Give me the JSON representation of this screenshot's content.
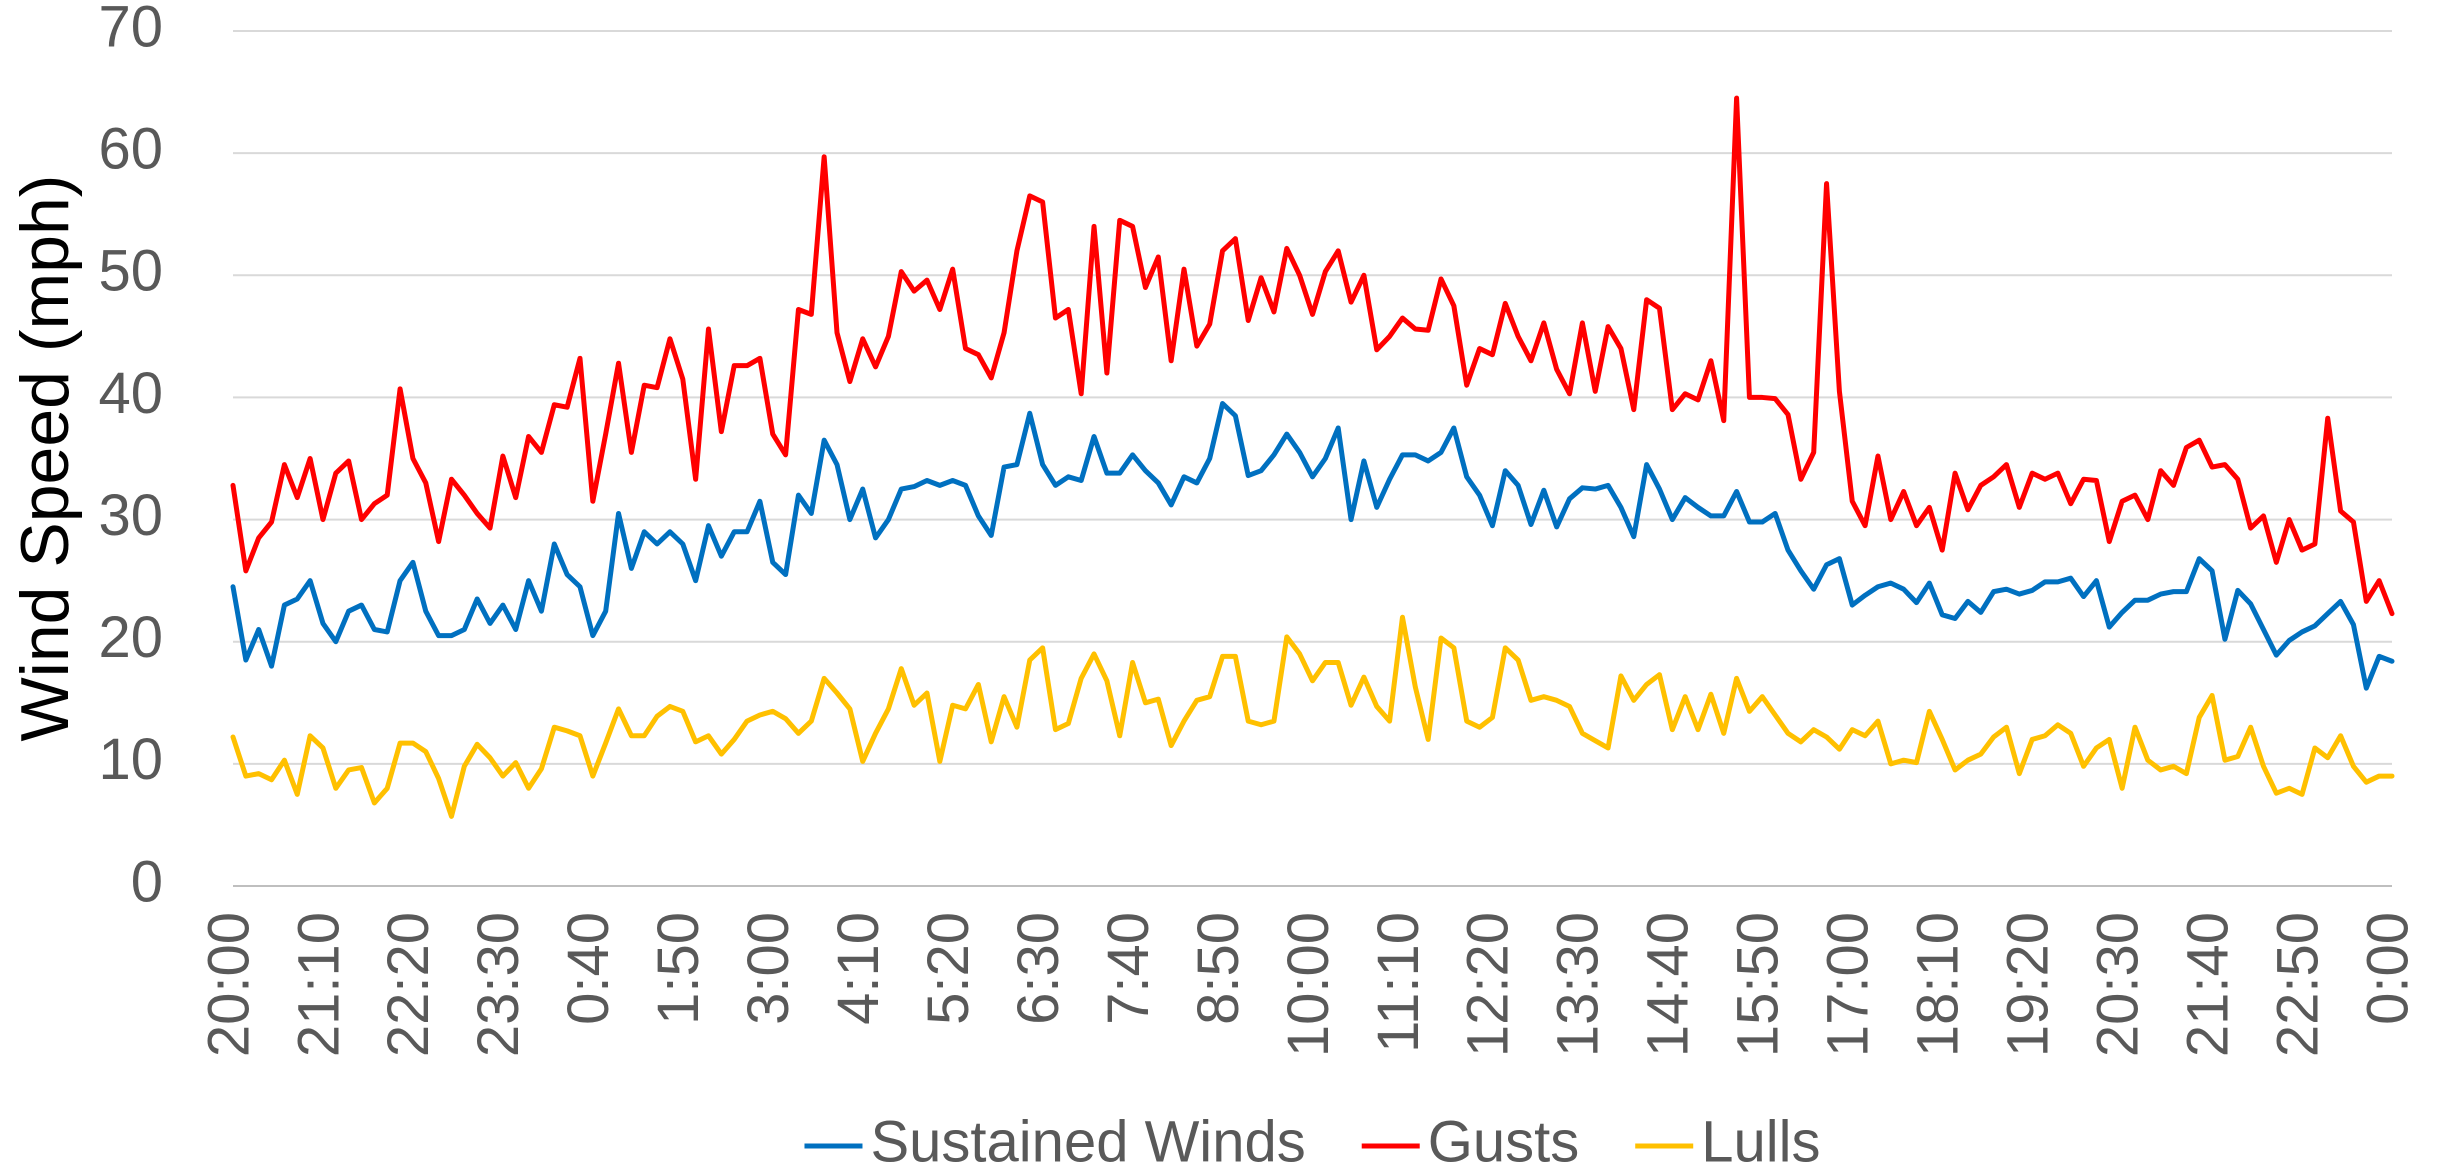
{
  "chart_data": {
    "type": "line",
    "ylabel": "Wind Speed (mph)",
    "ylim": [
      0,
      70
    ],
    "yticks": [
      0,
      10,
      20,
      30,
      40,
      50,
      60,
      70
    ],
    "grid": true,
    "legend": "bottom",
    "categories": [
      "20:00",
      null,
      null,
      null,
      null,
      null,
      null,
      "21:10",
      null,
      null,
      null,
      null,
      null,
      null,
      "22:20",
      null,
      null,
      null,
      null,
      null,
      null,
      "23:30",
      null,
      null,
      null,
      null,
      null,
      null,
      "0:40",
      null,
      null,
      null,
      null,
      null,
      null,
      "1:50",
      null,
      null,
      null,
      null,
      null,
      null,
      "3:00",
      null,
      null,
      null,
      null,
      null,
      null,
      "4:10",
      null,
      null,
      null,
      null,
      null,
      null,
      "5:20",
      null,
      null,
      null,
      null,
      null,
      null,
      "6:30",
      null,
      null,
      null,
      null,
      null,
      null,
      "7:40",
      null,
      null,
      null,
      null,
      null,
      null,
      "8:50",
      null,
      null,
      null,
      null,
      null,
      null,
      "10:00",
      null,
      null,
      null,
      null,
      null,
      null,
      "11:10",
      null,
      null,
      null,
      null,
      null,
      null,
      "12:20",
      null,
      null,
      null,
      null,
      null,
      null,
      "13:30",
      null,
      null,
      null,
      null,
      null,
      null,
      "14:40",
      null,
      null,
      null,
      null,
      null,
      null,
      "15:50",
      null,
      null,
      null,
      null,
      null,
      null,
      "17:00",
      null,
      null,
      null,
      null,
      null,
      null,
      "18:10",
      null,
      null,
      null,
      null,
      null,
      null,
      "19:20",
      null,
      null,
      null,
      null,
      null,
      null,
      "20:30",
      null,
      null,
      null,
      null,
      null,
      null,
      "21:40",
      null,
      null,
      null,
      null,
      null,
      null,
      "22:50",
      null,
      null,
      null,
      null,
      null,
      null,
      "0:00"
    ],
    "series": [
      {
        "name": "Sustained Winds",
        "color": "#0070c0",
        "values": [
          24.5,
          18.5,
          21,
          18,
          23,
          23.5,
          25,
          21.5,
          20,
          22.5,
          23,
          21,
          20.8,
          25,
          26.5,
          22.5,
          20.5,
          20.5,
          21,
          23.5,
          21.5,
          23,
          21,
          25,
          22.5,
          28,
          25.5,
          24.5,
          20.5,
          22.5,
          30.5,
          26,
          29,
          28,
          29,
          28,
          25,
          29.5,
          27,
          29,
          29,
          31.5,
          26.5,
          25.5,
          32,
          30.5,
          36.5,
          34.5,
          30,
          32.5,
          28.5,
          30,
          32.5,
          32.7,
          33.2,
          32.8,
          33.2,
          32.8,
          30.3,
          28.7,
          34.3,
          34.5,
          38.7,
          34.5,
          32.8,
          33.5,
          33.2,
          36.8,
          33.8,
          33.8,
          35.3,
          34,
          33,
          31.2,
          33.5,
          33,
          35,
          39.5,
          38.5,
          33.6,
          34,
          35.3,
          37,
          35.5,
          33.5,
          35,
          37.5,
          30,
          34.8,
          31,
          33.3,
          35.3,
          35.3,
          34.8,
          35.5,
          37.5,
          33.5,
          32,
          29.5,
          34,
          32.8,
          29.6,
          32.4,
          29.4,
          31.7,
          32.6,
          32.5,
          32.8,
          31,
          28.6,
          34.5,
          32.5,
          30,
          31.8,
          31,
          30.3,
          30.3,
          32.3,
          29.8,
          29.8,
          30.5,
          27.5,
          25.8,
          24.3,
          26.3,
          26.8,
          23,
          23.8,
          24.5,
          24.8,
          24.3,
          23.2,
          24.8,
          22.2,
          21.9,
          23.3,
          22.4,
          24.1,
          24.3,
          23.9,
          24.2,
          24.9,
          24.9,
          25.2,
          23.7,
          25,
          21.2,
          22.4,
          23.4,
          23.4,
          23.9,
          24.1,
          24.1,
          26.8,
          25.8,
          20.2,
          24.2,
          23.1,
          21,
          18.9,
          20.1,
          20.8,
          21.3,
          22.3,
          23.3,
          21.4,
          16.2,
          18.8,
          18.4
        ]
      },
      {
        "name": "Gusts",
        "color": "#ff0000",
        "values": [
          32.8,
          25.8,
          28.5,
          29.8,
          34.5,
          31.8,
          35,
          30,
          33.8,
          34.8,
          30,
          31.3,
          32,
          40.7,
          35,
          33,
          28.2,
          33.3,
          32,
          30.5,
          29.3,
          35.2,
          31.8,
          36.8,
          35.5,
          39.4,
          39.2,
          43.2,
          31.5,
          37,
          42.8,
          35.5,
          41,
          40.8,
          44.8,
          41.5,
          33.3,
          45.6,
          37.2,
          42.6,
          42.6,
          43.2,
          37,
          35.3,
          47.2,
          46.8,
          59.7,
          45.3,
          41.3,
          44.8,
          42.5,
          45,
          50.3,
          48.7,
          49.6,
          47.2,
          50.5,
          44,
          43.5,
          41.6,
          45.3,
          52,
          56.5,
          56,
          46.5,
          47.2,
          40.3,
          54,
          42,
          54.5,
          54,
          49,
          51.5,
          43,
          50.5,
          44.2,
          46,
          52,
          53,
          46.3,
          49.8,
          47,
          52.2,
          50,
          46.8,
          50.3,
          52,
          47.8,
          50,
          43.9,
          45,
          46.5,
          45.6,
          45.5,
          49.7,
          47.5,
          41,
          44,
          43.5,
          47.7,
          45,
          43,
          46.1,
          42.3,
          40.3,
          46.1,
          40.5,
          45.8,
          44,
          39,
          48,
          47.3,
          39,
          40.3,
          39.8,
          43,
          38.1,
          64.5,
          40,
          40,
          39.9,
          38.6,
          33.3,
          35.5,
          57.5,
          40.5,
          31.5,
          29.5,
          35.2,
          30,
          32.3,
          29.5,
          31,
          27.5,
          33.8,
          30.8,
          32.8,
          33.5,
          34.5,
          31,
          33.8,
          33.3,
          33.8,
          31.3,
          33.3,
          33.2,
          28.2,
          31.5,
          32,
          30,
          34,
          32.8,
          35.9,
          36.5,
          34.3,
          34.5,
          33.3,
          29.3,
          30.3,
          26.5,
          30,
          27.5,
          28,
          38.3,
          30.7,
          29.8,
          23.3,
          25,
          22.3
        ]
      },
      {
        "name": "Lulls",
        "color": "#ffc000",
        "values": [
          12.2,
          9,
          9.2,
          8.7,
          10.3,
          7.5,
          12.3,
          11.3,
          8,
          9.5,
          9.7,
          6.8,
          8,
          11.7,
          11.7,
          11,
          8.8,
          5.7,
          9.8,
          11.6,
          10.5,
          9,
          10.1,
          8,
          9.6,
          13,
          12.7,
          12.3,
          9,
          11.7,
          14.5,
          12.3,
          12.3,
          13.9,
          14.7,
          14.3,
          11.8,
          12.3,
          10.8,
          12,
          13.5,
          14,
          14.3,
          13.7,
          12.5,
          13.5,
          17,
          15.8,
          14.5,
          10.2,
          12.5,
          14.5,
          17.8,
          14.8,
          15.8,
          10.2,
          14.8,
          14.5,
          16.5,
          11.8,
          15.5,
          13,
          18.5,
          19.5,
          12.8,
          13.3,
          17,
          19,
          16.8,
          12.3,
          18.3,
          15,
          15.3,
          11.5,
          13.5,
          15.2,
          15.5,
          18.8,
          18.8,
          13.5,
          13.2,
          13.5,
          20.4,
          19,
          16.8,
          18.3,
          18.3,
          14.8,
          17.1,
          14.7,
          13.5,
          22,
          16.3,
          12,
          20.3,
          19.5,
          13.5,
          13,
          13.8,
          19.5,
          18.5,
          15.2,
          15.5,
          15.2,
          14.7,
          12.5,
          11.9,
          11.3,
          17.2,
          15.2,
          16.5,
          17.3,
          12.8,
          15.5,
          12.8,
          15.7,
          12.5,
          17,
          14.3,
          15.5,
          14,
          12.5,
          11.8,
          12.8,
          12.2,
          11.2,
          12.8,
          12.3,
          13.5,
          10,
          10.3,
          10.1,
          14.3,
          12,
          9.5,
          10.3,
          10.8,
          12.2,
          13,
          9.2,
          12,
          12.3,
          13.2,
          12.5,
          9.8,
          11.3,
          12,
          8,
          13,
          10.3,
          9.5,
          9.8,
          9.2,
          13.8,
          15.6,
          10.3,
          10.6,
          13,
          9.8,
          7.6,
          8,
          7.5,
          11.3,
          10.5,
          12.3,
          9.8,
          8.5,
          9,
          9
        ]
      }
    ]
  }
}
